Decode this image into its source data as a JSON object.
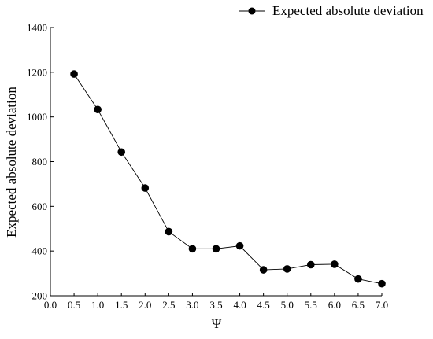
{
  "chart_data": {
    "type": "line",
    "xlabel": "Ψ",
    "ylabel": "Expected absolute deviation",
    "xlim": [
      0,
      7
    ],
    "ylim": [
      200,
      1400
    ],
    "x_ticks": [
      "0.0",
      "0.5",
      "1.0",
      "1.5",
      "2.0",
      "2.5",
      "3.0",
      "3.5",
      "4.0",
      "4.5",
      "5.0",
      "5.5",
      "6.0",
      "6.5",
      "7.0"
    ],
    "y_ticks": [
      "200",
      "400",
      "600",
      "800",
      "1000",
      "1200",
      "1400"
    ],
    "grid": false,
    "legend_position": "top-right",
    "series": [
      {
        "name": "Expected absolute deviation",
        "color": "#000000",
        "x": [
          0.5,
          1.0,
          1.5,
          2.0,
          2.5,
          3.0,
          3.5,
          4.0,
          4.5,
          5.0,
          5.5,
          6.0,
          6.5,
          7.0
        ],
        "y": [
          1192,
          1033,
          843,
          682,
          487,
          410,
          410,
          423,
          316,
          320,
          339,
          341,
          275,
          254
        ]
      }
    ]
  }
}
